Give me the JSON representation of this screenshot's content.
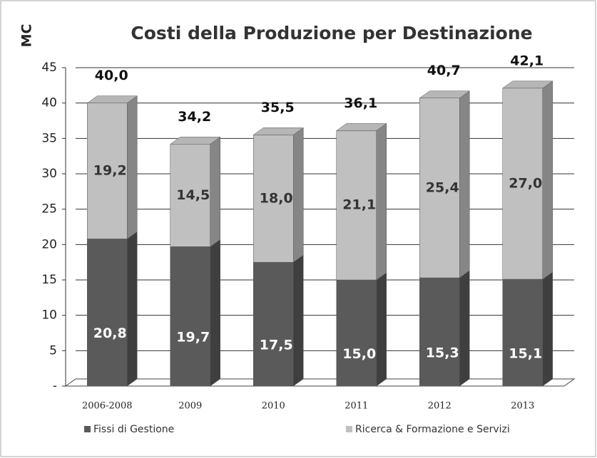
{
  "chart_data": {
    "type": "bar",
    "stacked": true,
    "title": "Costi della Produzione per Destinazione",
    "y_label": "MC",
    "categories": [
      "2006-2008",
      "2009",
      "2010",
      "2011",
      "2012",
      "2013"
    ],
    "series": [
      {
        "name": "Fissi di Gestione",
        "color": "#5a5a5a",
        "values": [
          20.8,
          19.7,
          17.5,
          15.0,
          15.3,
          15.1
        ],
        "value_labels": [
          "20,8",
          "19,7",
          "17,5",
          "15,0",
          "15,3",
          "15,1"
        ]
      },
      {
        "name": "Ricerca & Formazione e Servizi",
        "color": "#c0c0c0",
        "values": [
          19.2,
          14.5,
          18.0,
          21.1,
          25.4,
          27.0
        ],
        "value_labels": [
          "19,2",
          "14,5",
          "18,0",
          "21,1",
          "25,4",
          "27,0"
        ]
      }
    ],
    "total_values": [
      40.0,
      34.2,
      35.5,
      36.1,
      40.7,
      42.1
    ],
    "total_labels": [
      "40,0",
      "34,2",
      "35,5",
      "36,1",
      "40,7",
      "42,1"
    ],
    "ylim": [
      0,
      45
    ],
    "yticks": [
      {
        "value": 0,
        "label": "-"
      },
      5,
      10,
      15,
      20,
      25,
      30,
      35,
      40,
      45
    ],
    "grid": true,
    "legend": "bottom"
  }
}
